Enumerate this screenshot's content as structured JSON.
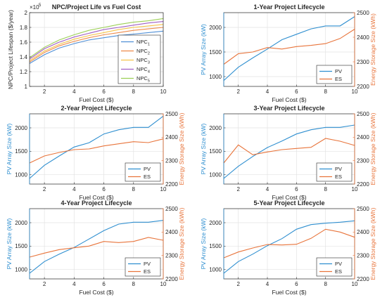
{
  "chart_data": [
    {
      "type": "line",
      "title": "NPC/Project Life vs Fuel Cost",
      "xlabel": "Fuel Cost ($)",
      "ylabel": "NPC/Project Lifespan ($/year)",
      "exponent_label": "×10",
      "exponent_power": "5",
      "x": [
        1,
        2,
        3,
        4,
        5,
        6,
        7,
        8,
        9,
        10
      ],
      "xlim": [
        1,
        10
      ],
      "ylim": [
        1,
        2
      ],
      "xticks": [
        2,
        4,
        6,
        8,
        10
      ],
      "yticks": [
        1,
        1.2,
        1.4,
        1.6,
        1.8,
        2
      ],
      "grid": true,
      "legend": "bottom-right",
      "series": [
        {
          "name": "NPC",
          "sub": "1",
          "color": "#4f8fd6",
          "values": [
            1.31,
            1.43,
            1.52,
            1.58,
            1.63,
            1.66,
            1.69,
            1.71,
            1.73,
            1.75
          ]
        },
        {
          "name": "NPC",
          "sub": "2",
          "color": "#ee8a4a",
          "values": [
            1.33,
            1.46,
            1.55,
            1.61,
            1.66,
            1.7,
            1.73,
            1.76,
            1.78,
            1.8
          ]
        },
        {
          "name": "NPC",
          "sub": "3",
          "color": "#f5c34a",
          "values": [
            1.35,
            1.48,
            1.57,
            1.64,
            1.69,
            1.73,
            1.77,
            1.8,
            1.82,
            1.84
          ]
        },
        {
          "name": "NPC",
          "sub": "4",
          "color": "#a05fc4",
          "values": [
            1.37,
            1.51,
            1.6,
            1.67,
            1.72,
            1.77,
            1.8,
            1.83,
            1.86,
            1.88
          ]
        },
        {
          "name": "NPC",
          "sub": "5",
          "color": "#9bcf55",
          "values": [
            1.39,
            1.53,
            1.63,
            1.7,
            1.76,
            1.8,
            1.84,
            1.87,
            1.89,
            1.92
          ]
        }
      ]
    },
    {
      "type": "line",
      "title": "1-Year Project Lifecycle",
      "xlabel": "Fuel Cost ($)",
      "ylabel": "PV Array Size (kW)",
      "ylabel_right": "Energy Storage Size (kWh)",
      "x": [
        1,
        2,
        3,
        4,
        5,
        6,
        7,
        8,
        9,
        10
      ],
      "xlim": [
        1,
        10
      ],
      "xticks": [
        2,
        4,
        6,
        8,
        10
      ],
      "ylim": [
        800,
        2300
      ],
      "yticks": [
        1000,
        1500,
        2000
      ],
      "ylim_right": [
        2200,
        2500
      ],
      "yticks_right": [
        2200,
        2300,
        2400,
        2500
      ],
      "grid": true,
      "legend": "bottom-right",
      "series": [
        {
          "name": "PV",
          "axis": "left",
          "color": "#2f8fd0",
          "values": [
            920,
            1190,
            1380,
            1560,
            1750,
            1860,
            1970,
            2030,
            2030,
            2220
          ]
        },
        {
          "name": "ES",
          "axis": "right",
          "color": "#e8743b",
          "values": [
            2290,
            2333,
            2340,
            2358,
            2352,
            2362,
            2367,
            2374,
            2395,
            2433
          ]
        }
      ]
    },
    {
      "type": "line",
      "title": "2-Year Project Lifecycle",
      "xlabel": "Fuel Cost ($)",
      "ylabel": "PV Array Size (kW)",
      "ylabel_right": "Energy Storage Size (kWh)",
      "x": [
        1,
        2,
        3,
        4,
        5,
        6,
        7,
        8,
        9,
        10
      ],
      "xlim": [
        1,
        10
      ],
      "xticks": [
        2,
        4,
        6,
        8,
        10
      ],
      "ylim": [
        800,
        2300
      ],
      "yticks": [
        1000,
        1500,
        2000
      ],
      "ylim_right": [
        2200,
        2500
      ],
      "yticks_right": [
        2200,
        2300,
        2400,
        2500
      ],
      "grid": true,
      "legend": "bottom-right",
      "series": [
        {
          "name": "PV",
          "axis": "left",
          "color": "#2f8fd0",
          "values": [
            920,
            1200,
            1400,
            1590,
            1680,
            1870,
            1960,
            2010,
            2010,
            2250
          ]
        },
        {
          "name": "ES",
          "axis": "right",
          "color": "#e8743b",
          "values": [
            2290,
            2320,
            2335,
            2347,
            2350,
            2363,
            2372,
            2381,
            2377,
            2393
          ]
        }
      ]
    },
    {
      "type": "line",
      "title": "3-Year Project Lifecycle",
      "xlabel": "Fuel Cost ($)",
      "ylabel": "PV Array Size (kW)",
      "ylabel_right": "Energy Storage Size (kWh)",
      "x": [
        1,
        2,
        3,
        4,
        5,
        6,
        7,
        8,
        9,
        10
      ],
      "xlim": [
        1,
        10
      ],
      "xticks": [
        2,
        4,
        6,
        8,
        10
      ],
      "ylim": [
        800,
        2300
      ],
      "yticks": [
        1000,
        1500,
        2000
      ],
      "ylim_right": [
        2200,
        2500
      ],
      "yticks_right": [
        2200,
        2300,
        2400,
        2500
      ],
      "grid": true,
      "legend": "bottom-right",
      "series": [
        {
          "name": "PV",
          "axis": "left",
          "color": "#2f8fd0",
          "values": [
            920,
            1180,
            1390,
            1580,
            1720,
            1870,
            1960,
            2010,
            2010,
            2060
          ]
        },
        {
          "name": "ES",
          "axis": "right",
          "color": "#e8743b",
          "values": [
            2290,
            2367,
            2325,
            2337,
            2347,
            2352,
            2357,
            2395,
            2383,
            2365
          ]
        }
      ]
    },
    {
      "type": "line",
      "title": "4-Year Project Lifecycle",
      "xlabel": "Fuel Cost ($)",
      "ylabel": "PV Array Size (kW)",
      "ylabel_right": "Energy Storage Size (kWh)",
      "x": [
        1,
        2,
        3,
        4,
        5,
        6,
        7,
        8,
        9,
        10
      ],
      "xlim": [
        1,
        10
      ],
      "xticks": [
        2,
        4,
        6,
        8,
        10
      ],
      "ylim": [
        800,
        2300
      ],
      "yticks": [
        1000,
        1500,
        2000
      ],
      "ylim_right": [
        2200,
        2500
      ],
      "yticks_right": [
        2200,
        2300,
        2400,
        2500
      ],
      "grid": true,
      "legend": "bottom-right",
      "series": [
        {
          "name": "PV",
          "axis": "left",
          "color": "#2f8fd0",
          "values": [
            920,
            1170,
            1330,
            1470,
            1650,
            1830,
            1970,
            2010,
            2010,
            2050
          ]
        },
        {
          "name": "ES",
          "axis": "right",
          "color": "#e8743b",
          "values": [
            2293,
            2310,
            2325,
            2333,
            2340,
            2360,
            2355,
            2360,
            2377,
            2365
          ]
        }
      ]
    },
    {
      "type": "line",
      "title": "5-Year Project Lifecycle",
      "xlabel": "Fuel Cost ($)",
      "ylabel": "PV Array Size (kW)",
      "ylabel_right": "Energy Storage Size (kWh)",
      "x": [
        1,
        2,
        3,
        4,
        5,
        6,
        7,
        8,
        9,
        10
      ],
      "xlim": [
        1,
        10
      ],
      "xticks": [
        2,
        4,
        6,
        8,
        10
      ],
      "ylim": [
        800,
        2300
      ],
      "yticks": [
        1000,
        1500,
        2000
      ],
      "ylim_right": [
        2200,
        2500
      ],
      "yticks_right": [
        2200,
        2300,
        2400,
        2500
      ],
      "grid": true,
      "legend": "bottom-right",
      "series": [
        {
          "name": "PV",
          "axis": "left",
          "color": "#2f8fd0",
          "values": [
            920,
            1170,
            1330,
            1510,
            1660,
            1860,
            1960,
            1990,
            2010,
            2040
          ]
        },
        {
          "name": "ES",
          "axis": "right",
          "color": "#e8743b",
          "values": [
            2290,
            2315,
            2332,
            2347,
            2345,
            2348,
            2373,
            2412,
            2400,
            2378
          ]
        }
      ]
    }
  ]
}
